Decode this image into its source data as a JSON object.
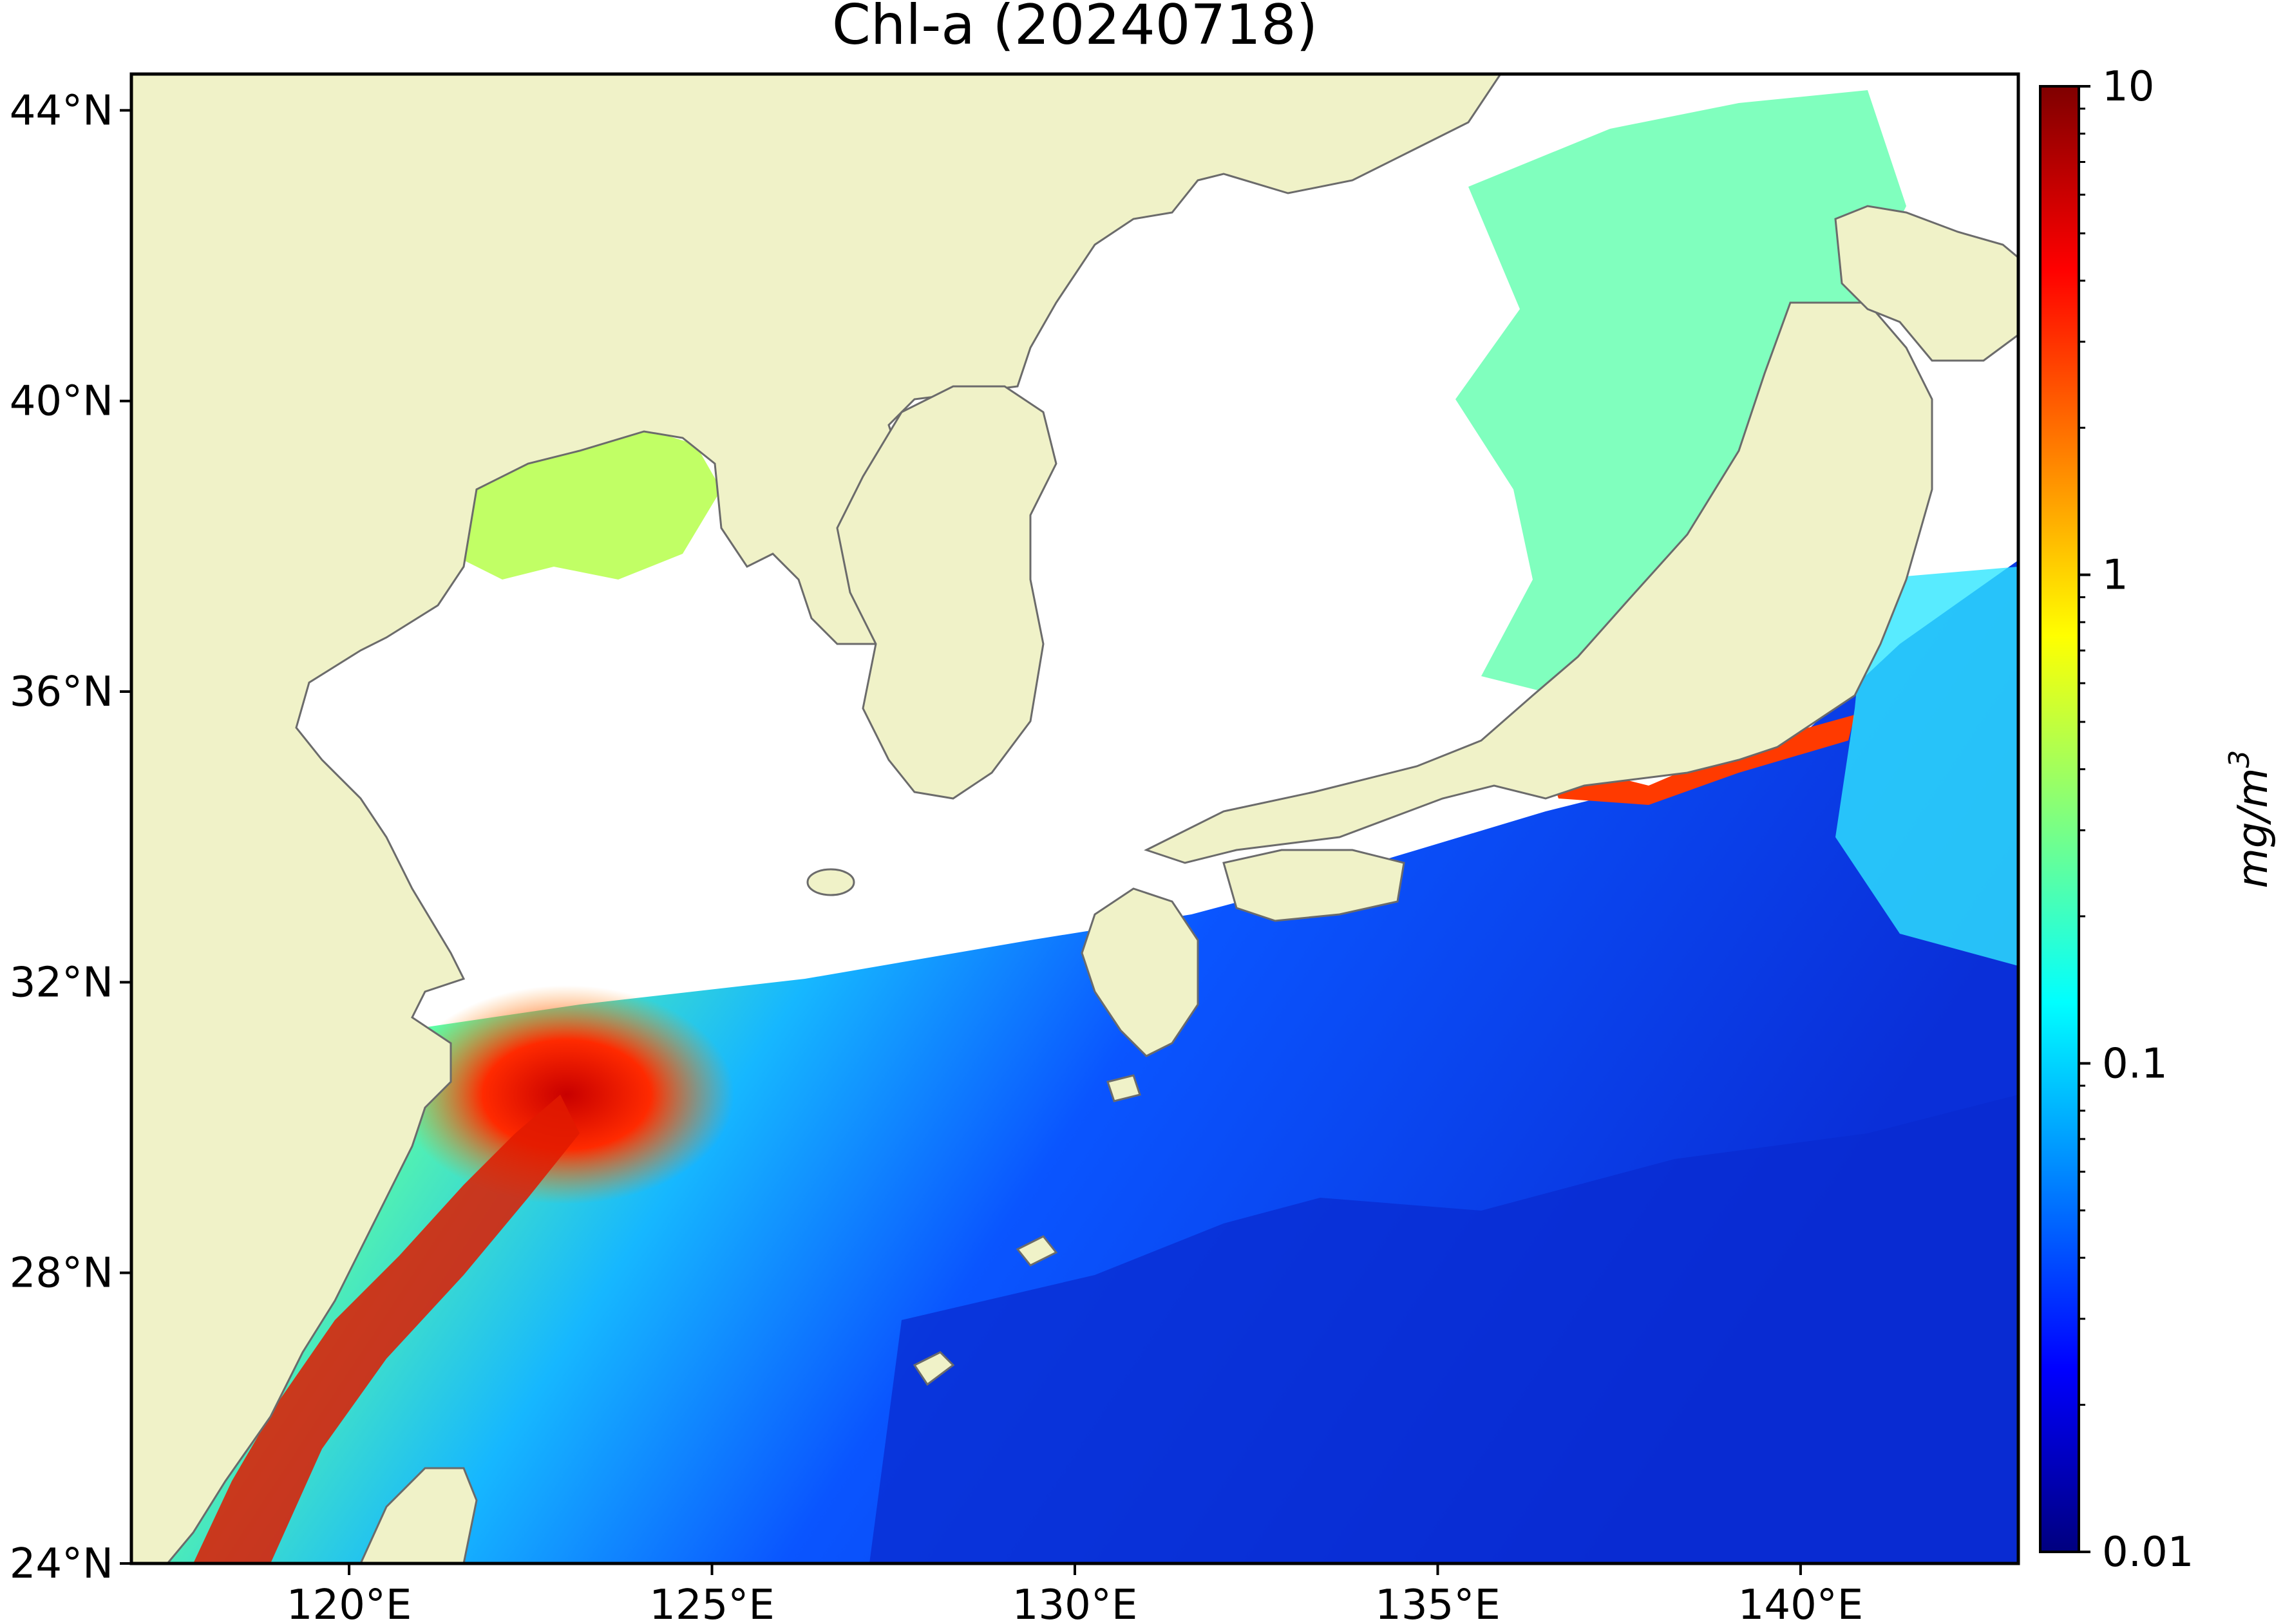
{
  "title": "Chl-a (20240718)",
  "map": {
    "background_color": "#ffffff",
    "land_color": "#f0f2c8",
    "coastline_color": "#6b6b6b",
    "lon_range": [
      117,
      143
    ],
    "lat_range": [
      24,
      44.5
    ],
    "lon_ticks": [
      {
        "value": 120,
        "label": "120°E"
      },
      {
        "value": 125,
        "label": "125°E"
      },
      {
        "value": 130,
        "label": "130°E"
      },
      {
        "value": 135,
        "label": "135°E"
      },
      {
        "value": 140,
        "label": "140°E"
      }
    ],
    "lat_ticks": [
      {
        "value": 44,
        "label": "44°N"
      },
      {
        "value": 40,
        "label": "40°N"
      },
      {
        "value": 36,
        "label": "36°N"
      },
      {
        "value": 32,
        "label": "32°N"
      },
      {
        "value": 28,
        "label": "28°N"
      },
      {
        "value": 24,
        "label": "24°N"
      }
    ]
  },
  "colorbar": {
    "colormap": "jet",
    "scale": "log",
    "range": [
      0.01,
      10
    ],
    "unit_label": "mg/m",
    "unit_exponent": "3",
    "ticks": [
      {
        "value": 10,
        "label": "10"
      },
      {
        "value": 1,
        "label": "1"
      },
      {
        "value": 0.1,
        "label": "0.1"
      },
      {
        "value": 0.01,
        "label": "0.01"
      }
    ],
    "stops": [
      "#00007f",
      "#0000ff",
      "#007fff",
      "#00ffff",
      "#7fff7f",
      "#ffff00",
      "#ff7f00",
      "#ff0000",
      "#7f0000"
    ]
  }
}
